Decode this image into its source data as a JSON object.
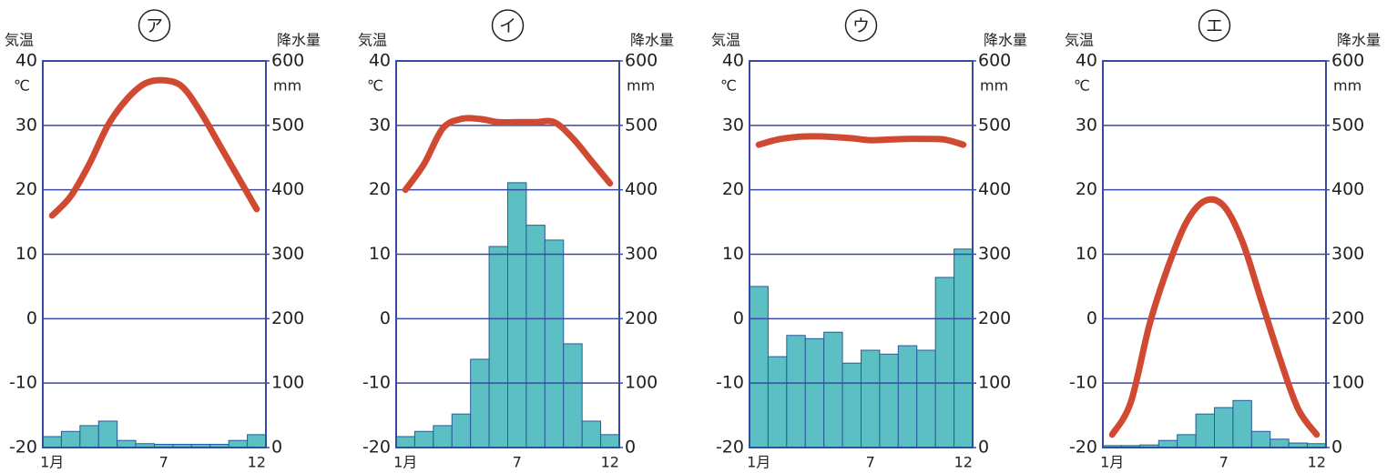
{
  "chart_data": [
    {
      "type": "climograph",
      "title": "ア",
      "y_label": "気温",
      "y2_label": "降水量",
      "y_unit": "℃",
      "y2_unit": "mm",
      "categories": [
        "1月",
        null,
        null,
        null,
        null,
        null,
        "7",
        null,
        null,
        null,
        null,
        "12"
      ],
      "ylim": [
        -20,
        40
      ],
      "yticks": [
        -20,
        -10,
        0,
        10,
        20,
        30,
        40
      ],
      "y2lim": [
        0,
        600
      ],
      "y2ticks": [
        0,
        100,
        200,
        300,
        400,
        500,
        600
      ],
      "grid": true,
      "series": [
        {
          "kind": "bar",
          "axis": "y2",
          "color": "#5bbfc4",
          "values": [
            17,
            25,
            34,
            41,
            11,
            6,
            5,
            5,
            5,
            5,
            11,
            20
          ]
        },
        {
          "kind": "line",
          "axis": "y",
          "color": "#d04a32",
          "values": [
            16,
            19,
            24,
            30,
            34,
            36.5,
            37,
            36,
            32,
            27,
            22,
            17
          ]
        }
      ]
    },
    {
      "type": "climograph",
      "title": "イ",
      "y_label": "気温",
      "y2_label": "降水量",
      "y_unit": "℃",
      "y2_unit": "mm",
      "categories": [
        "1月",
        null,
        null,
        null,
        null,
        null,
        "7",
        null,
        null,
        null,
        null,
        "12"
      ],
      "ylim": [
        -20,
        40
      ],
      "yticks": [
        -20,
        -10,
        0,
        10,
        20,
        30,
        40
      ],
      "y2lim": [
        0,
        600
      ],
      "y2ticks": [
        0,
        100,
        200,
        300,
        400,
        500,
        600
      ],
      "grid": true,
      "series": [
        {
          "kind": "bar",
          "axis": "y2",
          "color": "#5bbfc4",
          "values": [
            17,
            25,
            34,
            52,
            137,
            312,
            411,
            345,
            322,
            161,
            41,
            20
          ]
        },
        {
          "kind": "line",
          "axis": "y",
          "color": "#d04a32",
          "values": [
            20,
            24,
            29.5,
            31,
            31,
            30.5,
            30.5,
            30.5,
            30.5,
            28,
            24.5,
            21
          ]
        }
      ]
    },
    {
      "type": "climograph",
      "title": "ウ",
      "y_label": "気温",
      "y2_label": "降水量",
      "y_unit": "℃",
      "y2_unit": "mm",
      "categories": [
        "1月",
        null,
        null,
        null,
        null,
        null,
        "7",
        null,
        null,
        null,
        null,
        "12"
      ],
      "ylim": [
        -20,
        40
      ],
      "yticks": [
        -20,
        -10,
        0,
        10,
        20,
        30,
        40
      ],
      "y2lim": [
        0,
        600
      ],
      "y2ticks": [
        0,
        100,
        200,
        300,
        400,
        500,
        600
      ],
      "grid": true,
      "series": [
        {
          "kind": "bar",
          "axis": "y2",
          "color": "#5bbfc4",
          "values": [
            250,
            141,
            174,
            169,
            179,
            131,
            151,
            145,
            158,
            151,
            264,
            308
          ]
        },
        {
          "kind": "line",
          "axis": "y",
          "color": "#d04a32",
          "values": [
            27,
            27.8,
            28.2,
            28.3,
            28.2,
            28,
            27.7,
            27.8,
            27.9,
            27.9,
            27.8,
            27
          ]
        }
      ]
    },
    {
      "type": "climograph",
      "title": "エ",
      "y_label": "気温",
      "y2_label": "降水量",
      "y_unit": "℃",
      "y2_unit": "mm",
      "categories": [
        "1月",
        null,
        null,
        null,
        null,
        null,
        "7",
        null,
        null,
        null,
        null,
        "12"
      ],
      "ylim": [
        -20,
        40
      ],
      "yticks": [
        -20,
        -10,
        0,
        10,
        20,
        30,
        40
      ],
      "y2lim": [
        0,
        600
      ],
      "y2ticks": [
        0,
        100,
        200,
        300,
        400,
        500,
        600
      ],
      "grid": true,
      "series": [
        {
          "kind": "bar",
          "axis": "y2",
          "color": "#5bbfc4",
          "values": [
            3,
            3,
            4,
            11,
            20,
            52,
            62,
            73,
            25,
            13,
            7,
            6
          ]
        },
        {
          "kind": "line",
          "axis": "y",
          "color": "#d04a32",
          "values": [
            -18,
            -13,
            -1,
            8,
            15,
            18.3,
            17.5,
            12,
            3,
            -6,
            -14,
            -18
          ]
        }
      ]
    }
  ]
}
